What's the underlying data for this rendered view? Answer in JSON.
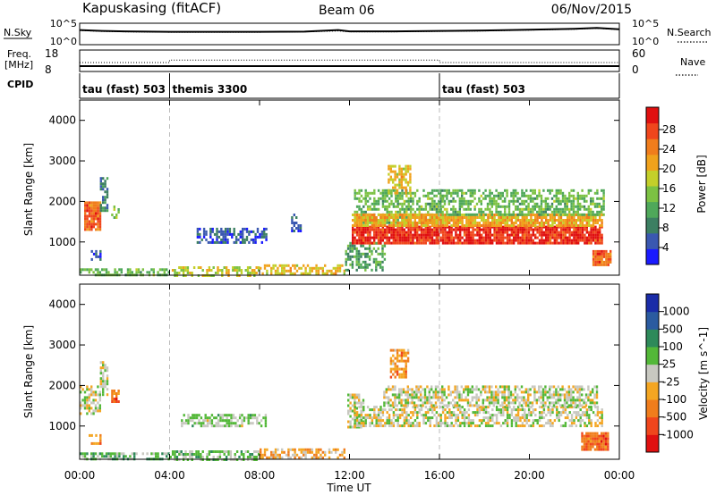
{
  "header": {
    "station": "Kapuskasing (fitACF)",
    "beam": "Beam 06",
    "date": "06/Nov/2015"
  },
  "top_panels": {
    "nsky": {
      "left_label": "N.Sky",
      "right_label": "N.Search",
      "left_ticks": [
        "10^5",
        "10^0"
      ],
      "right_ticks": [
        "10^5",
        "10^0"
      ]
    },
    "freq": {
      "left_label_line1": "Freq.",
      "left_label_line2": "[MHz]",
      "right_label": "Nave",
      "left_ticks": [
        "18",
        "8"
      ],
      "right_ticks": [
        "60",
        "0"
      ]
    },
    "cpid": {
      "label": "CPID",
      "segments": [
        {
          "label": "tau (fast) 503",
          "start": 0,
          "end": 4
        },
        {
          "label": "themis 3300",
          "start": 4,
          "end": 16
        },
        {
          "label": "tau (fast) 503",
          "start": 16,
          "end": 24
        }
      ]
    }
  },
  "axes": {
    "xlabel": "Time UT",
    "ylabel": "Slant Range [km]",
    "xticks": [
      "00:00",
      "04:00",
      "08:00",
      "12:00",
      "16:00",
      "20:00",
      "00:00"
    ],
    "yticks": [
      "1000",
      "2000",
      "3000",
      "4000"
    ]
  },
  "power_colorbar": {
    "title": "Power [dB]",
    "ticks": [
      "4",
      "8",
      "12",
      "16",
      "20",
      "24",
      "28"
    ],
    "colors": [
      "#1a1aff",
      "#3a58b0",
      "#3c7f62",
      "#4fa85a",
      "#7cc243",
      "#c4cf2a",
      "#f0a21c",
      "#f07d1c",
      "#f0461c",
      "#e01010"
    ]
  },
  "velocity_colorbar": {
    "title": "Velocity [m s^-1]",
    "ticks": [
      "1000",
      "500",
      "100",
      "25",
      "-25",
      "-100",
      "-500",
      "-1000"
    ],
    "colors": [
      "#1a2ca8",
      "#2b5ba0",
      "#2e8a5a",
      "#53b838",
      "#c8c8c0",
      "#f4a622",
      "#f07d1c",
      "#f0461c",
      "#e01010"
    ]
  },
  "chart_data": [
    {
      "type": "line",
      "name": "Sky noise / search noise",
      "x_unit": "hours UT",
      "x": [
        0,
        1,
        2,
        4,
        6,
        8,
        10,
        11.5,
        12,
        14,
        16,
        18,
        20,
        22,
        23,
        24
      ],
      "nsky_log10": [
        3.4,
        3.2,
        3.1,
        3.0,
        3.0,
        3.0,
        3.05,
        3.4,
        3.1,
        3.1,
        3.2,
        3.3,
        3.5,
        3.7,
        3.9,
        3.6
      ],
      "nsearch_log10": [
        3.3,
        3.1,
        3.0,
        2.9,
        2.9,
        2.9,
        3.0,
        3.2,
        3.0,
        3.0,
        3.1,
        3.2,
        3.4,
        3.6,
        3.8,
        3.5
      ],
      "ylim": [
        0,
        5
      ]
    },
    {
      "type": "line",
      "name": "Frequency and Nave",
      "x_unit": "hours UT",
      "freq_mhz": {
        "x": [
          0,
          24
        ],
        "values": [
          10.5,
          10.5
        ],
        "ylim": [
          8,
          18
        ]
      },
      "nave": {
        "x": [
          0,
          4,
          4,
          16,
          16,
          24
        ],
        "values": [
          25,
          25,
          32,
          32,
          25,
          25
        ],
        "ylim": [
          0,
          60
        ]
      }
    },
    {
      "type": "heatmap",
      "name": "Power",
      "x_unit": "hours UT",
      "y_unit": "slant range km",
      "xlim": [
        0,
        24
      ],
      "ylim": [
        180,
        4500
      ],
      "value_unit": "dB",
      "regions": [
        {
          "t0": 0.0,
          "t1": 4.0,
          "r0": 200,
          "r1": 350,
          "level": 3.5
        },
        {
          "t0": 4.0,
          "t1": 8.0,
          "r0": 200,
          "r1": 400,
          "level": 5.0
        },
        {
          "t0": 8.0,
          "t1": 11.8,
          "r0": 200,
          "r1": 450,
          "level": 5.5
        },
        {
          "t0": 0.2,
          "t1": 0.9,
          "r0": 1300,
          "r1": 2000,
          "level": 7.5
        },
        {
          "t0": 0.9,
          "t1": 1.2,
          "r0": 1800,
          "r1": 2600,
          "level": 2.0
        },
        {
          "t0": 1.4,
          "t1": 1.7,
          "r0": 1600,
          "r1": 1900,
          "level": 4.0
        },
        {
          "t0": 0.4,
          "t1": 0.9,
          "r0": 600,
          "r1": 800,
          "level": 1.0
        },
        {
          "t0": 5.2,
          "t1": 8.3,
          "r0": 1000,
          "r1": 1350,
          "level": 1.0
        },
        {
          "t0": 9.4,
          "t1": 9.8,
          "r0": 1300,
          "r1": 1700,
          "level": 1.0
        },
        {
          "t0": 11.8,
          "t1": 13.6,
          "r0": 300,
          "r1": 1000,
          "level": 3.0
        },
        {
          "t0": 12.2,
          "t1": 16.2,
          "r0": 1500,
          "r1": 2300,
          "level": 3.5
        },
        {
          "t0": 13.7,
          "t1": 14.7,
          "r0": 2200,
          "r1": 2900,
          "level": 5.5
        },
        {
          "t0": 12.1,
          "t1": 23.2,
          "r0": 1000,
          "r1": 1400,
          "level": 8.5
        },
        {
          "t0": 12.1,
          "t1": 23.2,
          "r0": 1400,
          "r1": 1700,
          "level": 6.0
        },
        {
          "t0": 16.0,
          "t1": 23.3,
          "r0": 1700,
          "r1": 2300,
          "level": 3.5
        },
        {
          "t0": 22.8,
          "t1": 23.6,
          "r0": 450,
          "r1": 800,
          "level": 7.5
        }
      ]
    },
    {
      "type": "heatmap",
      "name": "Velocity",
      "x_unit": "hours UT",
      "y_unit": "slant range km",
      "xlim": [
        0,
        24
      ],
      "ylim": [
        180,
        4500
      ],
      "value_unit": "m s^-1",
      "regions": [
        {
          "t0": 0.0,
          "t1": 4.0,
          "r0": 200,
          "r1": 350,
          "level": 3.0
        },
        {
          "t0": 4.0,
          "t1": 8.0,
          "r0": 200,
          "r1": 400,
          "level": 3.2
        },
        {
          "t0": 8.0,
          "t1": 11.8,
          "r0": 200,
          "r1": 450,
          "level": 5.0
        },
        {
          "t0": 0.0,
          "t1": 0.9,
          "r0": 1300,
          "r1": 2000,
          "level": 4.0
        },
        {
          "t0": 0.9,
          "t1": 1.2,
          "r0": 1800,
          "r1": 2600,
          "level": 4.0
        },
        {
          "t0": 1.4,
          "t1": 1.7,
          "r0": 1600,
          "r1": 1900,
          "level": 6.5
        },
        {
          "t0": 0.4,
          "t1": 0.9,
          "r0": 600,
          "r1": 800,
          "level": 5.5
        },
        {
          "t0": 4.5,
          "t1": 8.3,
          "r0": 1000,
          "r1": 1300,
          "level": 3.5
        },
        {
          "t0": 11.9,
          "t1": 12.6,
          "r0": 1000,
          "r1": 1800,
          "level": 4.0
        },
        {
          "t0": 12.2,
          "t1": 23.2,
          "r0": 1000,
          "r1": 1500,
          "level": 4.0
        },
        {
          "t0": 13.5,
          "t1": 23.0,
          "r0": 1500,
          "r1": 2000,
          "level": 4.0
        },
        {
          "t0": 13.8,
          "t1": 14.6,
          "r0": 2200,
          "r1": 2900,
          "level": 5.5
        },
        {
          "t0": 22.3,
          "t1": 23.5,
          "r0": 450,
          "r1": 850,
          "level": 6.5
        }
      ]
    }
  ]
}
